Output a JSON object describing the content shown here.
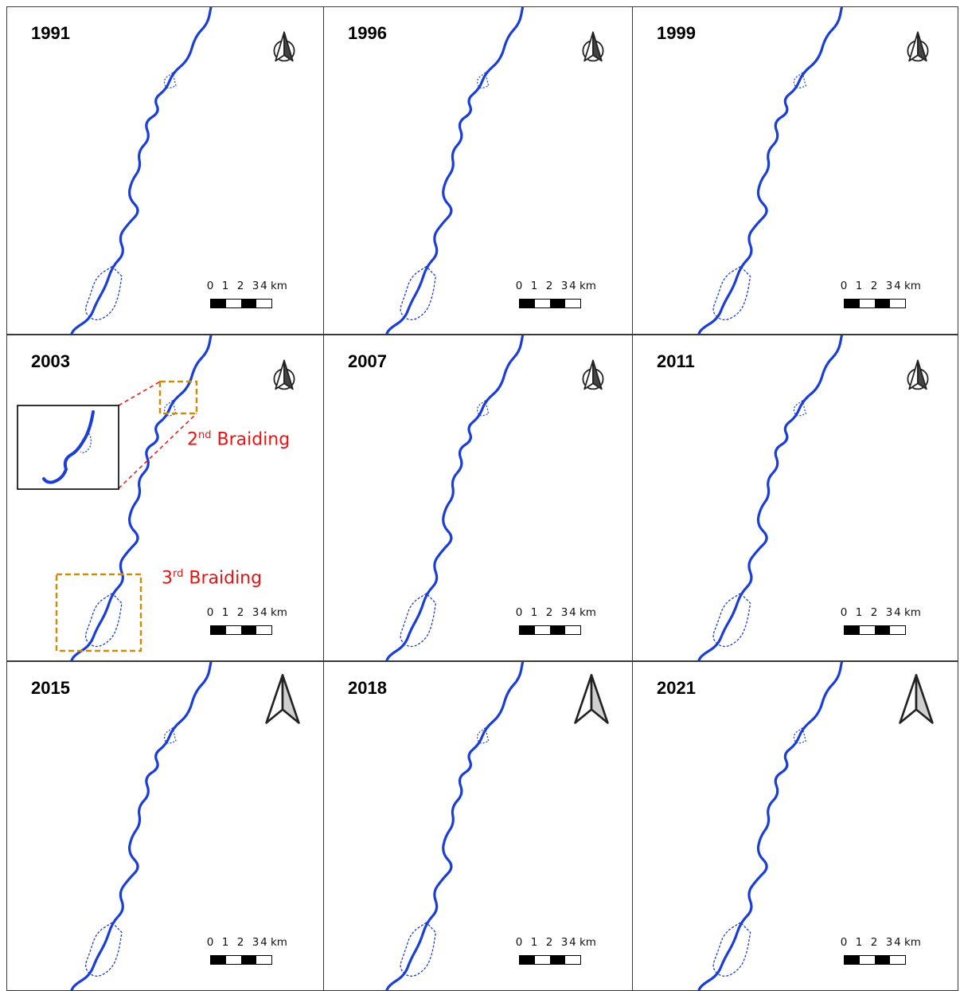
{
  "panels": [
    {
      "year": "1991"
    },
    {
      "year": "1996"
    },
    {
      "year": "1999"
    },
    {
      "year": "2003"
    },
    {
      "year": "2007"
    },
    {
      "year": "2011"
    },
    {
      "year": "2015"
    },
    {
      "year": "2018"
    },
    {
      "year": "2021"
    }
  ],
  "scale_bar": {
    "ticks": [
      "0",
      "1",
      "2",
      "3",
      "4 km"
    ]
  },
  "annotations": {
    "second_braiding": {
      "ordinal": "2",
      "suffix": "nd",
      "text": "Braiding"
    },
    "third_braiding": {
      "ordinal": "3",
      "suffix": "rd",
      "text": "Braiding"
    }
  },
  "colors": {
    "river": "#1b3fd6",
    "highlight_box": "#c8900a",
    "connector": "#e52222",
    "label": "#ee1111",
    "frame": "#3a3a3a"
  },
  "icons": [
    "north-arrow-icon"
  ]
}
